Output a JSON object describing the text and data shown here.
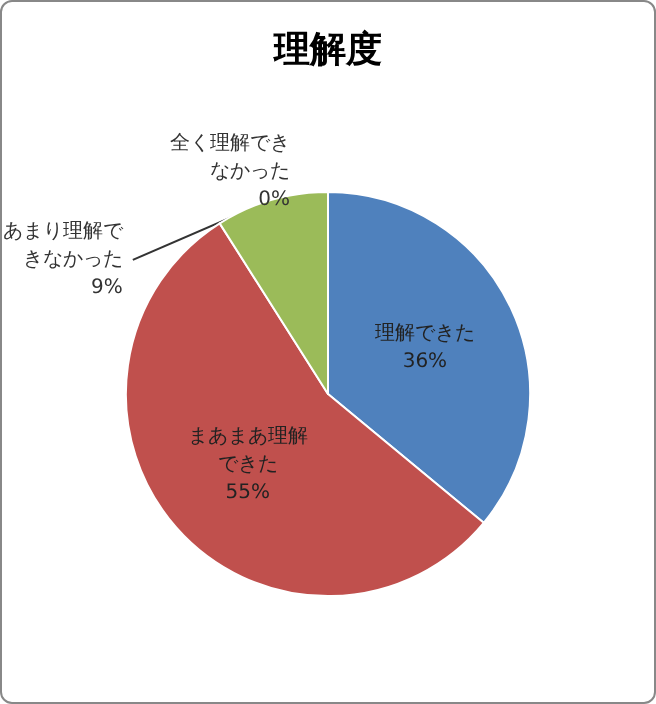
{
  "chart_data": {
    "type": "pie",
    "title": "理解度",
    "categories": [
      "理解できた",
      "まあまあ理解できた",
      "あまり理解できなかった",
      "全く理解できなかった"
    ],
    "values": [
      36,
      55,
      9,
      0
    ],
    "value_labels": [
      "36%",
      "55%",
      "9%",
      "0%"
    ],
    "colors": [
      "#4f81bd",
      "#c0504d",
      "#9bbb59",
      "#8064a2"
    ],
    "legend": false
  }
}
